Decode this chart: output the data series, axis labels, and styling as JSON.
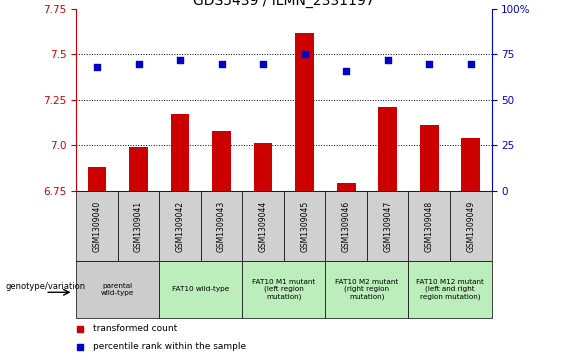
{
  "title": "GDS5439 / ILMN_2331197",
  "samples": [
    "GSM1309040",
    "GSM1309041",
    "GSM1309042",
    "GSM1309043",
    "GSM1309044",
    "GSM1309045",
    "GSM1309046",
    "GSM1309047",
    "GSM1309048",
    "GSM1309049"
  ],
  "bar_values": [
    6.88,
    6.99,
    7.17,
    7.08,
    7.01,
    7.62,
    6.79,
    7.21,
    7.11,
    7.04
  ],
  "percentile_values": [
    68,
    70,
    72,
    70,
    70,
    75,
    66,
    72,
    70,
    70
  ],
  "ylim_left": [
    6.75,
    7.75
  ],
  "ylim_right": [
    0,
    100
  ],
  "yticks_left": [
    6.75,
    7.0,
    7.25,
    7.5,
    7.75
  ],
  "yticks_right": [
    0,
    25,
    50,
    75,
    100
  ],
  "bar_color": "#cc0000",
  "dot_color": "#0000cc",
  "bar_width": 0.45,
  "bar_bottom": 6.75,
  "dotted_line_y": [
    7.0,
    7.25,
    7.5
  ],
  "group_spans": [
    {
      "label": "parental\nwild-type",
      "start": 0,
      "end": 2,
      "color": "#cccccc"
    },
    {
      "label": "FAT10 wild-type",
      "start": 2,
      "end": 4,
      "color": "#bbeebb"
    },
    {
      "label": "FAT10 M1 mutant\n(left region\nmutation)",
      "start": 4,
      "end": 6,
      "color": "#bbeebb"
    },
    {
      "label": "FAT10 M2 mutant\n(right region\nmutation)",
      "start": 6,
      "end": 8,
      "color": "#bbeebb"
    },
    {
      "label": "FAT10 M12 mutant\n(left and right\nregion mutation)",
      "start": 8,
      "end": 10,
      "color": "#bbeebb"
    }
  ],
  "legend_items": [
    {
      "color": "#cc0000",
      "label": "transformed count"
    },
    {
      "color": "#0000cc",
      "label": "percentile rank within the sample"
    }
  ],
  "left_axis_color": "#cc0000",
  "right_axis_color": "#0000cc",
  "title_fontsize": 10,
  "tick_fontsize": 7.5
}
